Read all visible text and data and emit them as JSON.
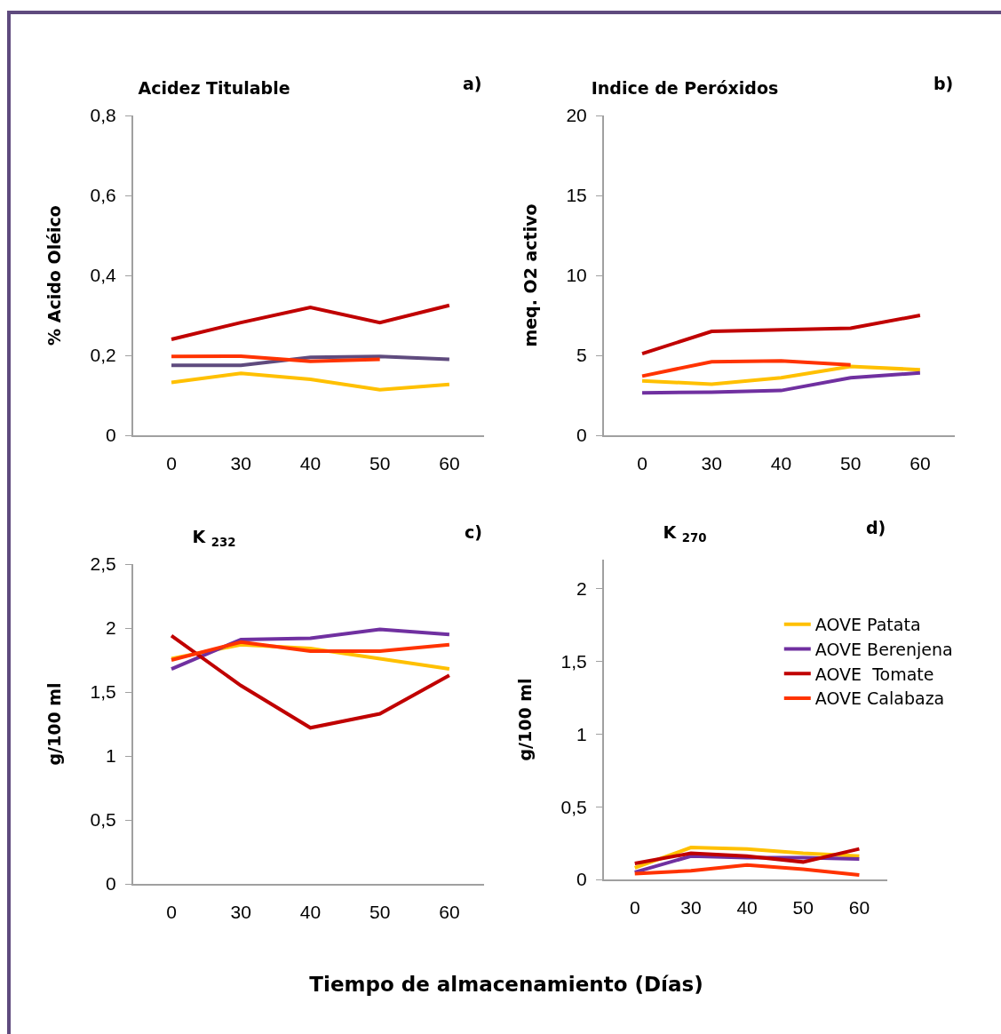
{
  "chart_data": [
    {
      "type": "line",
      "title": "Acidez Titulable",
      "ylabel": "% Acido Oléico",
      "annotations": [
        "a)"
      ],
      "categories": [
        "0",
        "30",
        "40",
        "50",
        "60"
      ],
      "ylim": [
        0,
        0.8
      ],
      "yticks": [
        {
          "value": 0,
          "label": "0"
        },
        {
          "value": 0.2,
          "label": "0,2"
        },
        {
          "value": 0.4,
          "label": "0,4"
        },
        {
          "value": 0.6,
          "label": "0,6"
        },
        {
          "value": 0.8,
          "label": "0,8"
        }
      ],
      "grid": false,
      "legend": false,
      "marker": "none",
      "line_style": "solid",
      "series": [
        {
          "color": "#ffc000",
          "values": [
            0.132,
            0.155,
            0.14,
            0.114,
            0.127
          ]
        },
        {
          "color": "#5f4b7e",
          "values": [
            0.175,
            0.175,
            0.195,
            0.197,
            0.19
          ]
        },
        {
          "color": "#c00000",
          "values": [
            0.24,
            0.282,
            0.32,
            0.282,
            0.325
          ]
        },
        {
          "color": "#ff3300",
          "values": [
            0.197,
            0.198,
            0.185,
            0.19,
            null
          ]
        }
      ]
    },
    {
      "type": "line",
      "title": "Indice de Peróxidos",
      "ylabel": "meq. O2 activo",
      "annotations": [
        "b)"
      ],
      "categories": [
        "0",
        "30",
        "40",
        "50",
        "60"
      ],
      "ylim": [
        0,
        20
      ],
      "yticks": [
        0,
        5,
        10,
        15,
        20
      ],
      "grid": false,
      "legend": false,
      "marker": "none",
      "line_style": "solid",
      "series": [
        {
          "color": "#ffc000",
          "values": [
            3.4,
            3.2,
            3.6,
            4.3,
            4.1
          ]
        },
        {
          "color": "#7030a0",
          "values": [
            2.65,
            2.7,
            2.8,
            3.6,
            3.9
          ]
        },
        {
          "color": "#c00000",
          "values": [
            5.1,
            6.5,
            6.6,
            6.7,
            7.5
          ]
        },
        {
          "color": "#ff3300",
          "values": [
            3.7,
            4.6,
            4.65,
            4.4,
            null
          ]
        }
      ]
    },
    {
      "type": "line",
      "title": "K $_{232}$",
      "ylabel": "g/100 ml",
      "annotations": [
        "c)"
      ],
      "categories": [
        "0",
        "30",
        "40",
        "50",
        "60"
      ],
      "ylim": [
        0,
        2.5
      ],
      "yticks": [
        0,
        {
          "value": 0.5,
          "label": "0,5"
        },
        1,
        {
          "value": 1.5,
          "label": "1,5"
        },
        2,
        {
          "value": 2.5,
          "label": "2,5"
        }
      ],
      "grid": false,
      "legend": false,
      "marker": "none",
      "line_style": "solid",
      "series": [
        {
          "color": "#ffc000",
          "values": [
            1.76,
            1.87,
            1.84,
            1.76,
            1.68
          ]
        },
        {
          "color": "#7030a0",
          "values": [
            1.68,
            1.91,
            1.92,
            1.99,
            1.95
          ]
        },
        {
          "color": "#c00000",
          "values": [
            1.94,
            1.55,
            1.22,
            1.33,
            1.63
          ]
        },
        {
          "color": "#ff3300",
          "values": [
            1.75,
            1.89,
            1.82,
            1.82,
            1.87
          ]
        }
      ]
    },
    {
      "type": "line",
      "title": "K $_{270}$",
      "ylabel": "g/100 ml",
      "annotations": [
        "d)",
        "Tiempo de almacenamiento (Días)"
      ],
      "categories": [
        "0",
        "30",
        "40",
        "50",
        "60"
      ],
      "ylim": [
        0,
        2.2
      ],
      "yticks": [
        0,
        {
          "value": 0.5,
          "label": "0,5"
        },
        1,
        {
          "value": 1.5,
          "label": "1,5"
        },
        2
      ],
      "grid": false,
      "legend": "right",
      "marker": "none",
      "line_style": "solid",
      "series": [
        {
          "name": "AOVE Patata",
          "color": "#ffc000",
          "values": [
            0.08,
            0.22,
            0.21,
            0.18,
            0.16
          ]
        },
        {
          "name": "AOVE Berenjena",
          "color": "#7030a0",
          "values": [
            0.05,
            0.16,
            0.15,
            0.15,
            0.14
          ]
        },
        {
          "name": "AOVE  Tomate",
          "color": "#c00000",
          "values": [
            0.11,
            0.18,
            0.16,
            0.12,
            0.21
          ]
        },
        {
          "name": "AOVE Calabaza",
          "color": "#ff3300",
          "values": [
            0.04,
            0.06,
            0.1,
            0.07,
            0.03
          ]
        }
      ]
    }
  ]
}
